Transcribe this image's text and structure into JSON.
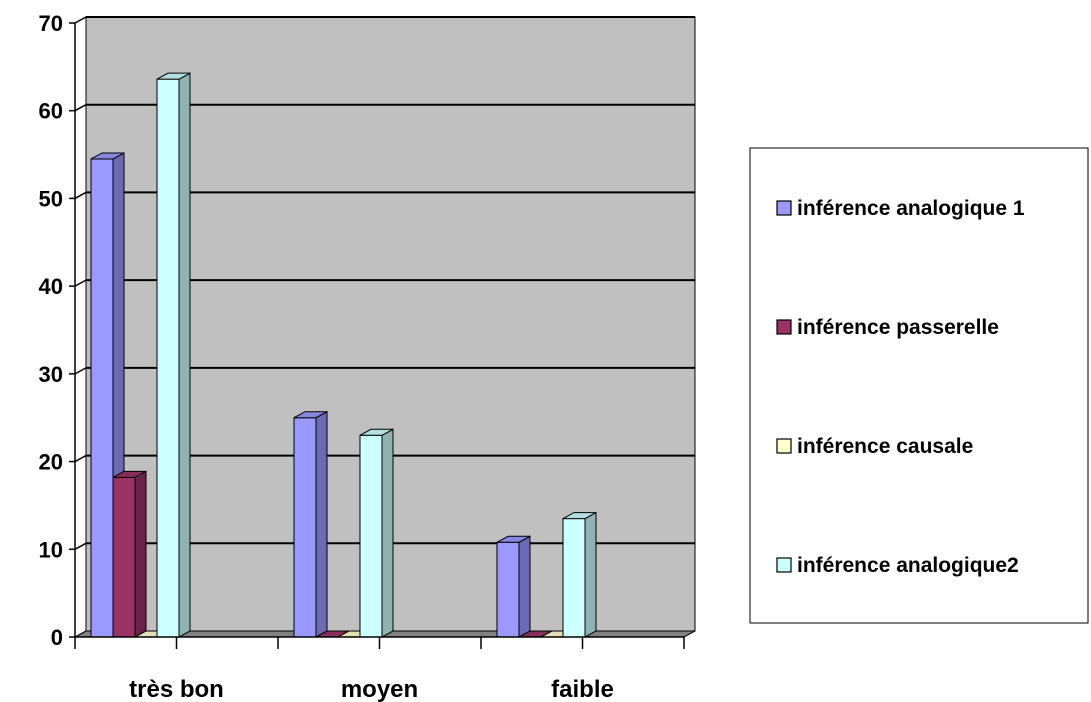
{
  "chart_data": {
    "type": "bar",
    "title": "",
    "xlabel": "",
    "ylabel": "",
    "categories": [
      "très bon",
      "moyen",
      "faible"
    ],
    "series": [
      {
        "name": "inférence analogique 1",
        "color": "#9999ff",
        "values": [
          54.5,
          25,
          10.8
        ]
      },
      {
        "name": "inférence passerelle",
        "color": "#993366",
        "values": [
          18.2,
          0,
          0
        ]
      },
      {
        "name": "inférence causale",
        "color": "#ffffcc",
        "values": [
          0,
          0,
          0
        ]
      },
      {
        "name": "inférence analogique2",
        "color": "#ccffff",
        "values": [
          63.6,
          23,
          13.5
        ]
      }
    ],
    "ylim": [
      0,
      70
    ],
    "yticks": [
      "0",
      "10",
      "20",
      "30",
      "40",
      "50",
      "60",
      "70"
    ],
    "grid": true,
    "legend_position": "right",
    "style": "3d-column"
  },
  "colors": {
    "wall": "#c0c0c0",
    "floor": "#808080",
    "gridline": "#000000"
  }
}
